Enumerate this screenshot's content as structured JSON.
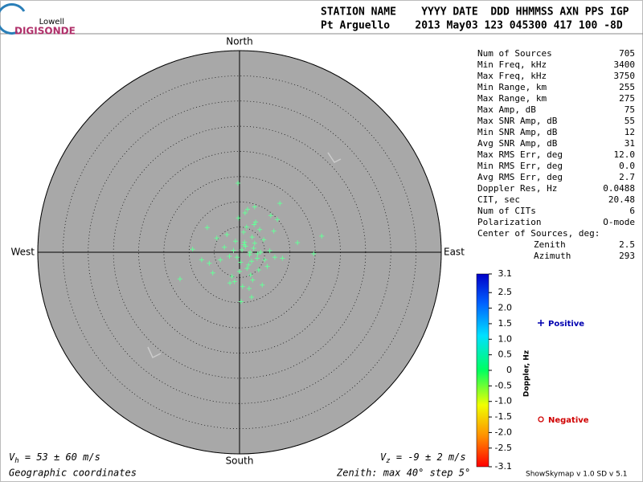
{
  "logo": {
    "top": "Lowell",
    "bottom": "DIGISONDE"
  },
  "header": {
    "line1": "STATION NAME    YYYY DATE  DDD HHMMSS AXN PPS IGP",
    "line2": "Pt Arguello    2013 May03 123 045300 417 100 -8D"
  },
  "stats": [
    [
      "Num of Sources",
      "705"
    ],
    [
      "Min Freq, kHz",
      "3400"
    ],
    [
      "Max Freq, kHz",
      "3750"
    ],
    [
      "Min Range, km",
      "255"
    ],
    [
      "Max Range, km",
      "275"
    ],
    [
      "Max Amp, dB",
      "75"
    ],
    [
      "Max SNR Amp, dB",
      "55"
    ],
    [
      "Min SNR Amp, dB",
      "12"
    ],
    [
      "Avg SNR Amp, dB",
      "31"
    ],
    [
      "Max RMS Err, deg",
      "12.0"
    ],
    [
      "Min RMS Err, deg",
      "0.0"
    ],
    [
      "Avg RMS Err, deg",
      "2.7"
    ],
    [
      "Doppler Res, Hz",
      "0.0488"
    ],
    [
      "CIT, sec",
      "20.48"
    ],
    [
      "Num of CITs",
      "6"
    ],
    [
      "Polarization",
      "O-mode"
    ]
  ],
  "center": {
    "title": "Center of Sources, deg:",
    "rows": [
      [
        "Zenith",
        "2.5"
      ],
      [
        "Azimuth",
        "293"
      ]
    ]
  },
  "chart_data": {
    "type": "skymap",
    "directions": {
      "north": "North",
      "south": "South",
      "west": "West",
      "east": "East"
    },
    "xlim": [
      -40,
      40
    ],
    "ylim": [
      -40,
      40
    ],
    "rings": [
      5,
      10,
      15,
      20,
      25,
      30,
      35,
      40
    ],
    "color": "#66ff99",
    "x": [
      -0.3,
      -11.8,
      -9.3,
      -6.4,
      14.7,
      16.3,
      8.0,
      6.2,
      11.5,
      2.4,
      -1.9,
      -5.3,
      0.5,
      1.2,
      2.0,
      2.8,
      3.5,
      1.0,
      -0.5,
      -1.2,
      0.2,
      1.8,
      3.0,
      4.2,
      5.0,
      2.5,
      0.8,
      -0.8,
      -2.0,
      -3.0,
      1.5,
      2.2,
      3.8,
      4.8,
      6.0,
      0.0,
      1.4,
      2.6,
      -1.5,
      -2.5,
      3.2,
      5.5,
      7.0,
      -3.8,
      -4.5,
      0.6,
      1.9,
      2.9,
      4.0,
      -0.2,
      1.1,
      2.4,
      3.6,
      6.8,
      -6.0,
      0.9,
      2.1,
      -1.0,
      4.5,
      7.5,
      8.5,
      -7.5,
      3.0,
      1.6,
      0.3
    ],
    "y": [
      13.7,
      -5.3,
      0.6,
      4.9,
      -0.3,
      3.2,
      9.7,
      7.3,
      1.9,
      -8.9,
      -6.1,
      -4.1,
      0.5,
      1.2,
      -0.5,
      0.8,
      -1.2,
      2.0,
      -1.0,
      0.4,
      -2.0,
      -2.5,
      1.8,
      0.0,
      -1.5,
      3.0,
      4.0,
      2.2,
      -0.8,
      1.0,
      -3.2,
      -4.5,
      -3.5,
      2.5,
      0.3,
      -3.8,
      5.0,
      -5.5,
      -4.8,
      3.5,
      6.0,
      -2.8,
      -1.0,
      -1.5,
      2.8,
      -6.8,
      -7.2,
      5.5,
      4.5,
      6.8,
      7.8,
      -1.8,
      -0.3,
      4.2,
      -2.2,
      1.5,
      0.0,
      -5.8,
      -6.5,
      6.5,
      -1.2,
      -1.5,
      9.0,
      8.5,
      -9.8
    ],
    "colorbar": {
      "label": "Doppler, Hz",
      "lim": [
        -3.1,
        3.1
      ],
      "ticks": [
        3.1,
        2.5,
        {
          "value": 2,
          "label": "2.0"
        },
        1.5,
        {
          "value": 1,
          "label": "1.0"
        },
        0.5,
        0,
        -0.5,
        {
          "value": -1,
          "label": "-1.0"
        },
        -1.5,
        {
          "value": -2,
          "label": "-2.0"
        },
        -2.5,
        -3.1
      ]
    },
    "legend": {
      "positive": "Positive",
      "negative": "Negative"
    }
  },
  "footer": {
    "vh": [
      "V",
      "h",
      " = 53 ± 60 m/s"
    ],
    "vz": [
      "V",
      "z",
      " = -9 ± 2 m/s"
    ],
    "coords": "Geographic coordinates",
    "zenith": "Zenith: max 40°  step 5°",
    "version": "ShowSkymap v 1.0  SD v 5.1"
  }
}
